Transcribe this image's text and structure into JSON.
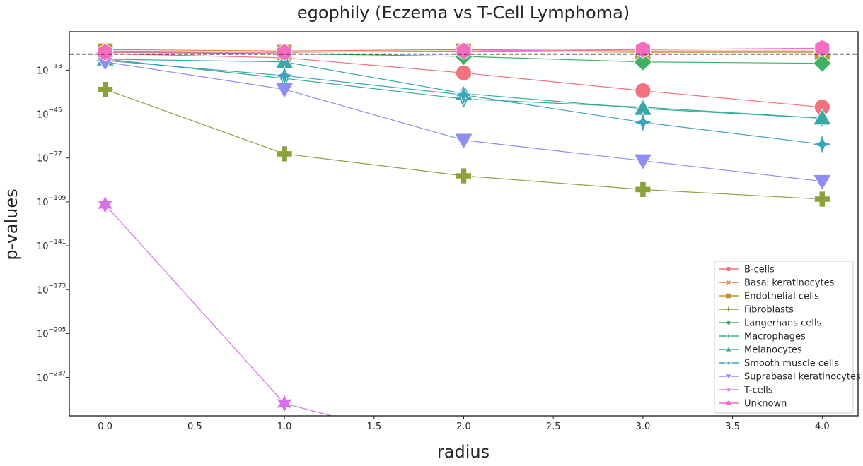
{
  "chart_data": {
    "type": "line",
    "title": "egophily (Eczema vs T-Cell Lymphoma)",
    "xlabel": "radius",
    "ylabel": "p-values",
    "y_scale": "log10",
    "x_ticks": [
      "0.0",
      "0.5",
      "1.0",
      "1.5",
      "2.0",
      "2.5",
      "3.0",
      "3.5",
      "4.0"
    ],
    "x_tick_values": [
      0,
      0.5,
      1,
      1.5,
      2,
      2.5,
      3,
      3.5,
      4
    ],
    "xlim": [
      -0.2,
      4.2
    ],
    "y_tick_exponents": [
      -13,
      -45,
      -77,
      -109,
      -141,
      -173,
      -205,
      -237
    ],
    "y_tick_base": "10",
    "ylim_log10": [
      -265,
      15
    ],
    "threshold_log10": -1.3,
    "grid": false,
    "legend_position": "lower right",
    "x": [
      0,
      1,
      2,
      3,
      4
    ],
    "series": [
      {
        "name": "B-cells",
        "color": "#f1717f",
        "marker": "circle",
        "log10_values": [
          -1,
          -4,
          -15,
          -28,
          -40
        ]
      },
      {
        "name": "Basal keratinocytes",
        "color": "#dd8140",
        "marker": "x",
        "log10_values": [
          2,
          1,
          2,
          1,
          1
        ]
      },
      {
        "name": "Endothelial cells",
        "color": "#b89a35",
        "marker": "square",
        "log10_values": [
          1,
          0,
          1,
          0,
          0
        ]
      },
      {
        "name": "Fibroblasts",
        "color": "#8aa23c",
        "marker": "plus",
        "log10_values": [
          -27,
          -74,
          -90,
          -100,
          -107
        ]
      },
      {
        "name": "Langerhans cells",
        "color": "#3fb162",
        "marker": "diamond",
        "log10_values": [
          0,
          -1,
          -3,
          -7,
          -8
        ]
      },
      {
        "name": "Macrophages",
        "color": "#37ac91",
        "marker": "thin-diamond",
        "log10_values": [
          -5,
          -19,
          -34,
          -40,
          -48
        ]
      },
      {
        "name": "Melanocytes",
        "color": "#39a9a5",
        "marker": "triangle-up",
        "log10_values": [
          -5,
          -7,
          -30,
          -41,
          -48
        ]
      },
      {
        "name": "Smooth muscle cells",
        "color": "#3aa3c0",
        "marker": "star4",
        "log10_values": [
          -6,
          -17,
          -31,
          -51,
          -67
        ]
      },
      {
        "name": "Suprabasal keratinocytes",
        "color": "#8d8ff0",
        "marker": "triangle-down",
        "log10_values": [
          -7,
          -27,
          -64,
          -79,
          -94
        ]
      },
      {
        "name": "T-cells",
        "color": "#d870ea",
        "marker": "star6",
        "log10_values": [
          -111,
          -256,
          -290,
          -290,
          -290
        ]
      },
      {
        "name": "Unknown",
        "color": "#f46ec0",
        "marker": "hexagon",
        "log10_values": [
          0,
          0,
          1,
          2,
          3
        ]
      }
    ]
  }
}
